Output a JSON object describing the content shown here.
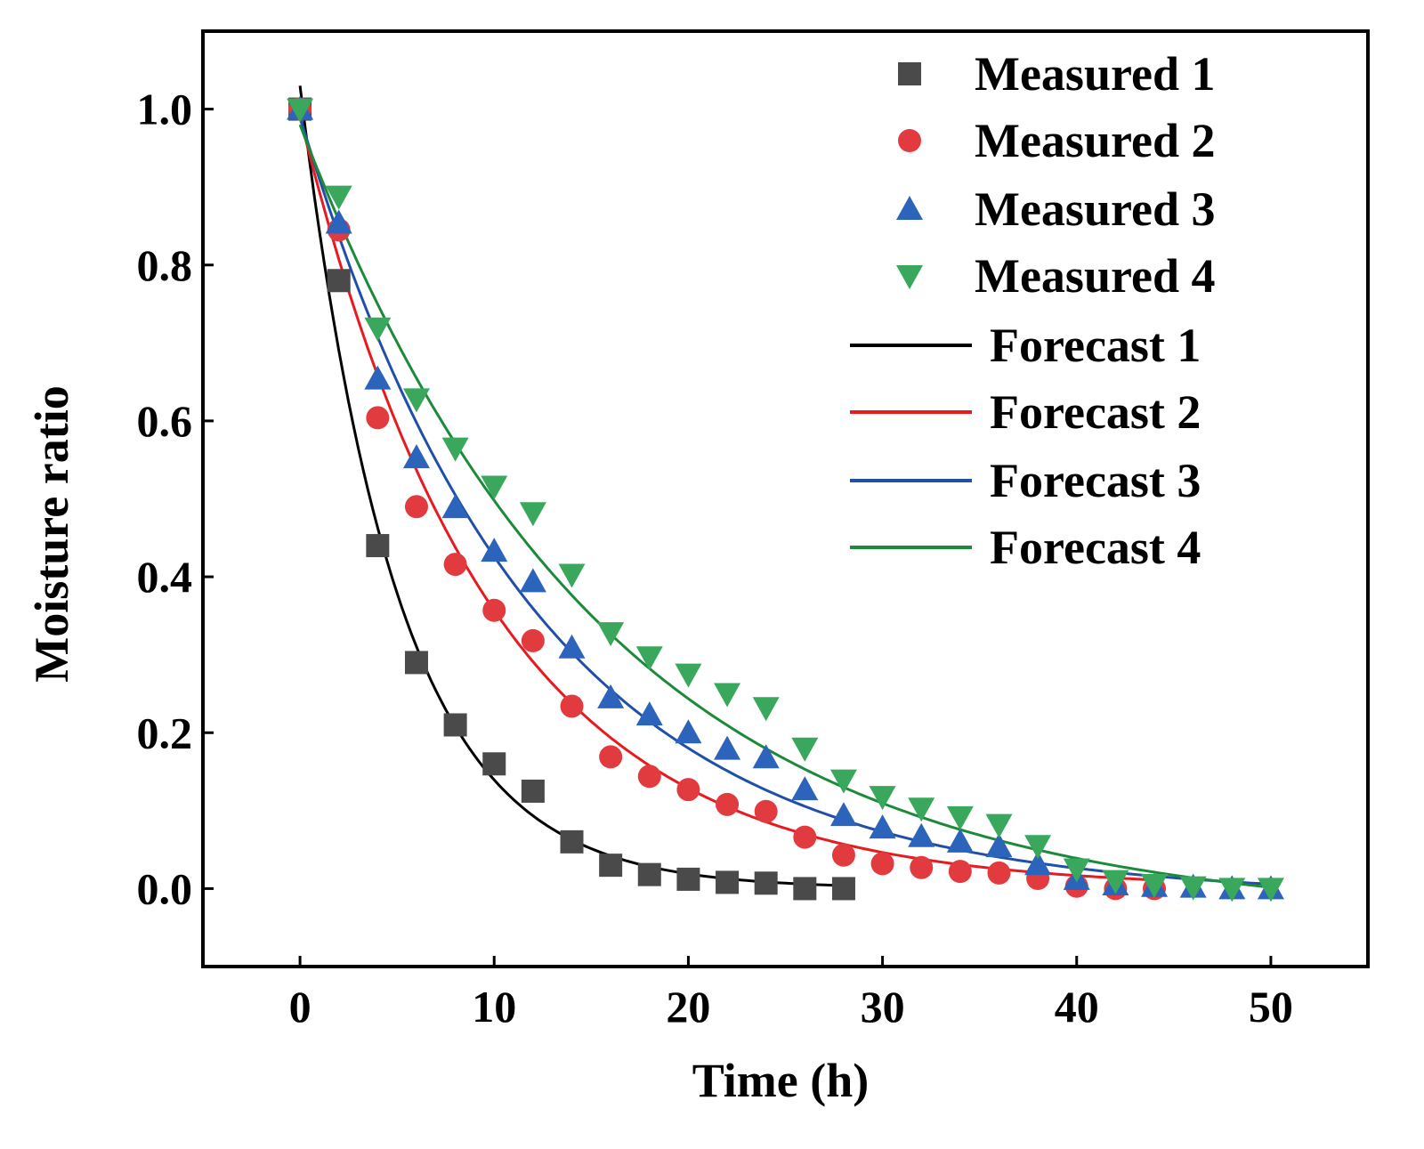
{
  "chart_data": {
    "type": "scatter",
    "title": "",
    "xlabel": "Time (h)",
    "ylabel": "Moisture ratio",
    "xlim": [
      -5,
      55
    ],
    "ylim": [
      -0.1,
      1.1
    ],
    "xticks": [
      "0",
      "10",
      "20",
      "30",
      "40",
      "50"
    ],
    "xtick_values": [
      0,
      10,
      20,
      30,
      40,
      50
    ],
    "yticks": [
      "0.0",
      "0.2",
      "0.4",
      "0.6",
      "0.8",
      "1.0"
    ],
    "ytick_values": [
      0,
      0.2,
      0.4,
      0.6,
      0.8,
      1.0
    ],
    "grid": false,
    "legend_position": "top-right",
    "measured": [
      {
        "name": "Measured 1",
        "marker": "square",
        "color": "#4a4a4a",
        "x": [
          0,
          2,
          4,
          6,
          8,
          10,
          12,
          14,
          16,
          18,
          20,
          22,
          24,
          26,
          28
        ],
        "y": [
          1.0,
          0.78,
          0.44,
          0.29,
          0.21,
          0.16,
          0.125,
          0.06,
          0.03,
          0.018,
          0.012,
          0.008,
          0.007,
          0.0,
          0.0
        ]
      },
      {
        "name": "Measured 2",
        "marker": "circle",
        "color": "#e23b3f",
        "x": [
          0,
          2,
          4,
          6,
          8,
          10,
          12,
          14,
          16,
          18,
          20,
          22,
          24,
          26,
          28,
          30,
          32,
          34,
          36,
          38,
          40,
          42,
          44
        ],
        "y": [
          1.0,
          0.845,
          0.604,
          0.49,
          0.416,
          0.357,
          0.318,
          0.234,
          0.169,
          0.144,
          0.127,
          0.108,
          0.099,
          0.066,
          0.043,
          0.032,
          0.027,
          0.022,
          0.02,
          0.013,
          0.003,
          0.0,
          0.0
        ]
      },
      {
        "name": "Measured 3",
        "marker": "triangle-up",
        "color": "#2d64bb",
        "x": [
          0,
          2,
          4,
          6,
          8,
          10,
          12,
          14,
          16,
          18,
          20,
          22,
          24,
          26,
          28,
          30,
          32,
          34,
          36,
          38,
          40,
          42,
          44,
          46,
          48,
          50
        ],
        "y": [
          1.0,
          0.854,
          0.654,
          0.553,
          0.489,
          0.433,
          0.394,
          0.309,
          0.245,
          0.223,
          0.2,
          0.179,
          0.168,
          0.127,
          0.094,
          0.078,
          0.067,
          0.06,
          0.054,
          0.031,
          0.012,
          0.005,
          0.003,
          0.002,
          0.0,
          0.0
        ]
      },
      {
        "name": "Measured 4",
        "marker": "triangle-down",
        "color": "#3aa85c",
        "x": [
          0,
          2,
          4,
          6,
          8,
          10,
          12,
          14,
          16,
          18,
          20,
          22,
          24,
          26,
          28,
          30,
          32,
          34,
          36,
          38,
          40,
          42,
          44,
          46,
          48,
          50
        ],
        "y": [
          1.0,
          0.888,
          0.719,
          0.628,
          0.565,
          0.516,
          0.482,
          0.403,
          0.328,
          0.297,
          0.275,
          0.25,
          0.232,
          0.18,
          0.139,
          0.118,
          0.103,
          0.092,
          0.082,
          0.055,
          0.025,
          0.01,
          0.005,
          0.002,
          0.0,
          0.0
        ]
      }
    ],
    "forecast": [
      {
        "name": "Forecast 1",
        "color": "#000000",
        "model": "a*exp(-k*t)+c",
        "a": 1.03,
        "k": 0.2,
        "c": 0.0,
        "x_range": [
          0,
          28
        ]
      },
      {
        "name": "Forecast 2",
        "color": "#e8191f",
        "model": "a*exp(-k*t)+c",
        "a": 0.99,
        "k": 0.102,
        "c": 0.0,
        "x_range": [
          0,
          44
        ]
      },
      {
        "name": "Forecast 3",
        "color": "#1f4fa8",
        "model": "a*exp(-k*t)+c",
        "a": 1.0,
        "k": 0.083,
        "c": -0.01,
        "x_range": [
          0,
          50
        ]
      },
      {
        "name": "Forecast 4",
        "color": "#1b8a3a",
        "model": "a*exp(-k*t)+c",
        "a": 1.02,
        "k": 0.064,
        "c": -0.04,
        "x_range": [
          0,
          50
        ]
      }
    ]
  }
}
